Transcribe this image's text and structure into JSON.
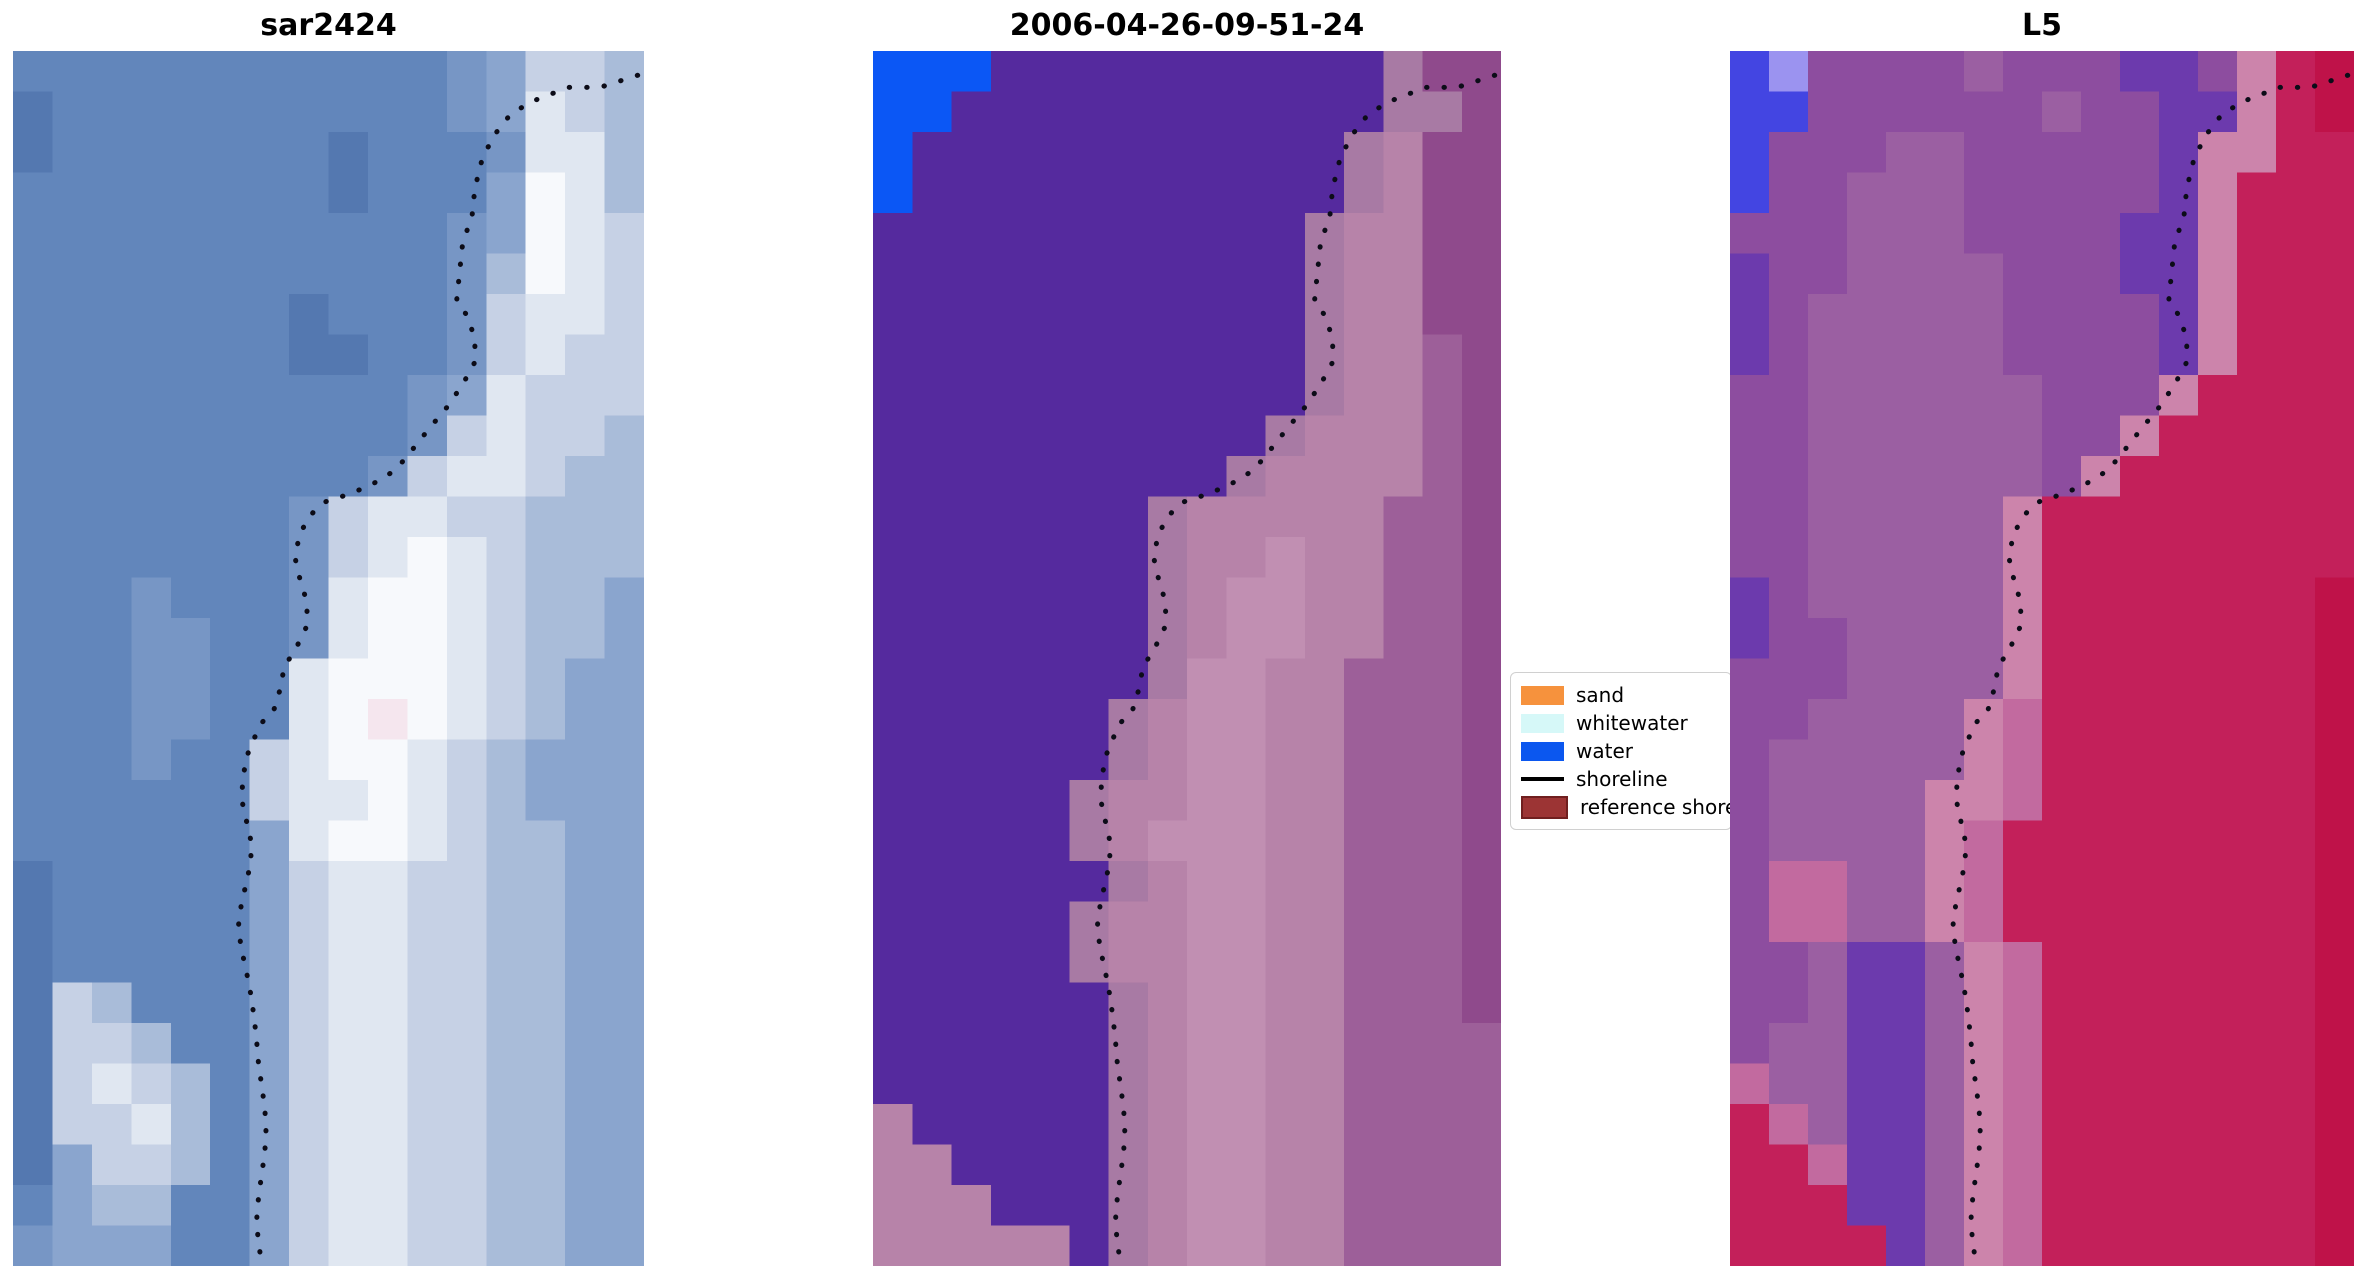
{
  "chart_data": {
    "type": "image",
    "description": "Three-panel coastal remote-sensing comparison: SAR image, classified optical image, and Landsat-5 image, each overlaid with a dotted detected shoreline",
    "panels": [
      {
        "id": "sar",
        "title": "sar2424",
        "palette": {
          "a": "#5478b0",
          "b": "#6286bb",
          "c": "#7796c5",
          "d": "#8aa5ce",
          "e": "#a9bcd9",
          "f": "#c6d1e5",
          "g": "#e0e7f1",
          "h": "#f7f9fc",
          "p": "#f5e6ee"
        },
        "rows": [
          "bbbbbbbbbbbcdffe",
          "abbbbbbbbbbcdgfe",
          "abbbbbbbabbbcgge",
          "bbbbbbbbabbbdhge",
          "bbbbbbbbbbbcdhgf",
          "bbbbbbbbbbbcehgf",
          "bbbbbbbabbbcfggf",
          "bbbbbbbaabbcfgff",
          "bbbbbbbbbbcdgfff",
          "bbbbbbbbbbcfgffe",
          "bbbbbbbbbcfggfee",
          "bbbbbbbcfggffeee",
          "bbbbbbbcfghgfeee",
          "bbbcbbbcghhgfeed",
          "bbbccbbcghhgfeed",
          "bbbccbbghhhgfedd",
          "bbbccbbghphgfedd",
          "bbbcbbfghhgfeddd",
          "bbbbbbfgghgfeddd",
          "bbbbbbdghhgfeedd",
          "abbbbbdfggffeedd",
          "abbbbbdfggffeedd",
          "abbbbbdfggffeedd",
          "afebbbdfggffeedd",
          "affebbdfggffeedd",
          "afgfebdfggffeedd",
          "affgebdfggffeedd",
          "adffebdfggffeedd",
          "bdeebbdfggffeedd",
          "cdddbbdfggffeedd"
        ]
      },
      {
        "id": "classified",
        "title": "2006-04-26-09-51-24",
        "palette": {
          "u": "#0b57f5",
          "w": "#552a9e",
          "p": "#a87aa4",
          "q": "#b783a9",
          "r": "#c18fb2",
          "s": "#8f4a8c",
          "t": "#9d5f99"
        },
        "rows": [
          "uuuwwwwwwwwwwpss",
          "uuwwwwwwwwwwwpps",
          "uwwwwwwwwwwwpqss",
          "uwwwwwwwwwwwpqss",
          "wwwwwwwwwwwpqqss",
          "wwwwwwwwwwwpqqss",
          "wwwwwwwwwwwpqqss",
          "wwwwwwwwwwwpqqts",
          "wwwwwwwwwwwpqqts",
          "wwwwwwwwwwpqqqts",
          "wwwwwwwwwpqqqqts",
          "wwwwwwwpqqqqqtts",
          "wwwwwwwpqqrqqtts",
          "wwwwwwwpqrrqqtts",
          "wwwwwwwpqrrqqtts",
          "wwwwwwwprrqqttts",
          "wwwwwwpqrrqqttts",
          "wwwwwwpqrrqqttts",
          "wwwwwpqqrrqqttts",
          "wwwwwpqrrrqqttts",
          "wwwwwwpqrrqqttts",
          "wwwwwpqqrrqqttts",
          "wwwwwpqqrrqqttts",
          "wwwwwwpqrrqqttts",
          "wwwwwwpqrrqqtttt",
          "wwwwwwpqrrqqtttt",
          "qwwwwwpqrrqqtttt",
          "qqwwwwpqrrqqtttt",
          "qqqwwwpqrrqqtttt",
          "qqqqqwpqrrqqtttt"
        ]
      },
      {
        "id": "l5",
        "title": "L5",
        "palette": {
          "A": "#4345e2",
          "L": "#9b93f0",
          "B": "#6c3aad",
          "C": "#8d4d9f",
          "D": "#9b5fa2",
          "I": "#cc84ab",
          "F": "#c26a9f",
          "G": "#c3205a",
          "H": "#bf1249"
        },
        "rows": [
          "ALCCCCDCCCBBCIGH",
          "AACCCCCCDCCBBIGH",
          "ACCCDDCCCCCBIIGG",
          "ACCDDDCCCCCBIGGG",
          "CCCDDDCCCCBBIGGG",
          "BCCDDDDCCCBBIGGG",
          "BCDDDDDCCCCBIGGG",
          "BCDDDDDCCCCBIGGG",
          "CCDDDDDDCCCIGGGG",
          "CCDDDDDDCCIGGGGG",
          "CCDDDDDDCIGGGGGG",
          "CCDDDDDIGGGGGGGG",
          "CCDDDDDIGGGGGGGG",
          "BCDDDDDIGGGGGGGH",
          "BCCDDDDIGGGGGGGH",
          "CCCDDDDIGGGGGGGH",
          "CCDDDDIFGGGGGGGH",
          "CDDDDDIFGGGGGGGH",
          "CDDDDIIFGGGGGGGH",
          "CDDDDIFGGGGGGGGH",
          "CFFDDIFGGGGGGGGH",
          "CFFDDIFGGGGGGGGH",
          "CCDBBDIFGGGGGGGH",
          "CCDBBDIFGGGGGGGH",
          "CDDBBDIFGGGGGGGH",
          "FDDBBDIFGGGGGGGH",
          "GFDBBDIFGGGGGGGH",
          "GGFBBDIFGGGGGGGH",
          "GGGBBDIFGGGGGGGH",
          "GGGGBDIFGGGGGGGH"
        ]
      }
    ],
    "shoreline": {
      "color": "#0c0c18",
      "style": "dotted",
      "points_norm": [
        [
          0.99,
          0.02
        ],
        [
          0.93,
          0.03
        ],
        [
          0.88,
          0.03
        ],
        [
          0.83,
          0.04
        ],
        [
          0.79,
          0.051
        ],
        [
          0.763,
          0.069
        ],
        [
          0.744,
          0.088
        ],
        [
          0.732,
          0.113
        ],
        [
          0.727,
          0.138
        ],
        [
          0.713,
          0.156
        ],
        [
          0.708,
          0.181
        ],
        [
          0.703,
          0.206
        ],
        [
          0.72,
          0.218
        ],
        [
          0.732,
          0.237
        ],
        [
          0.732,
          0.256
        ],
        [
          0.713,
          0.274
        ],
        [
          0.688,
          0.293
        ],
        [
          0.659,
          0.311
        ],
        [
          0.63,
          0.33
        ],
        [
          0.606,
          0.345
        ],
        [
          0.568,
          0.357
        ],
        [
          0.531,
          0.365
        ],
        [
          0.495,
          0.371
        ],
        [
          0.471,
          0.382
        ],
        [
          0.454,
          0.398
        ],
        [
          0.447,
          0.417
        ],
        [
          0.454,
          0.433
        ],
        [
          0.466,
          0.454
        ],
        [
          0.466,
          0.473
        ],
        [
          0.449,
          0.491
        ],
        [
          0.43,
          0.507
        ],
        [
          0.423,
          0.526
        ],
        [
          0.413,
          0.543
        ],
        [
          0.394,
          0.553
        ],
        [
          0.382,
          0.566
        ],
        [
          0.37,
          0.581
        ],
        [
          0.365,
          0.597
        ],
        [
          0.362,
          0.615
        ],
        [
          0.37,
          0.634
        ],
        [
          0.377,
          0.65
        ],
        [
          0.377,
          0.667
        ],
        [
          0.37,
          0.684
        ],
        [
          0.362,
          0.702
        ],
        [
          0.357,
          0.721
        ],
        [
          0.362,
          0.739
        ],
        [
          0.37,
          0.758
        ],
        [
          0.377,
          0.777
        ],
        [
          0.382,
          0.795
        ],
        [
          0.386,
          0.814
        ],
        [
          0.389,
          0.833
        ],
        [
          0.394,
          0.851
        ],
        [
          0.399,
          0.87
        ],
        [
          0.401,
          0.888
        ],
        [
          0.399,
          0.907
        ],
        [
          0.394,
          0.925
        ],
        [
          0.389,
          0.944
        ],
        [
          0.386,
          0.963
        ],
        [
          0.389,
          0.981
        ],
        [
          0.394,
          0.997
        ]
      ]
    },
    "legend": {
      "entries": [
        {
          "label": "sand",
          "type": "patch",
          "color": "#f6923d"
        },
        {
          "label": "whitewater",
          "type": "patch",
          "color": "#d6f8f8"
        },
        {
          "label": "water",
          "type": "patch",
          "color": "#0b57ef"
        },
        {
          "label": "shoreline",
          "type": "line",
          "color": "#000000"
        },
        {
          "label": "reference shoreline",
          "type": "patch",
          "color": "#9c3434",
          "border": "#701f1f"
        }
      ]
    }
  }
}
